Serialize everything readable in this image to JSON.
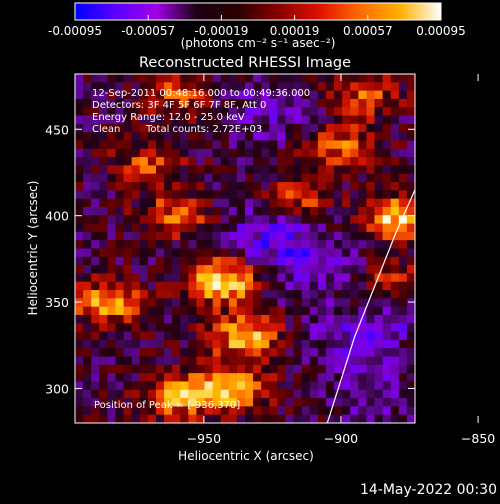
{
  "colorbar": {
    "tick_labels": [
      "-0.00095",
      "-0.00057",
      "-0.00019",
      "0.00019",
      "0.00057",
      "0.00095"
    ],
    "tick_values": [
      -0.00095,
      -0.00057,
      -0.00019,
      0.00019,
      0.00057,
      0.00095
    ],
    "range": [
      -0.00095,
      0.00095
    ],
    "units": "(photons cm⁻² s⁻¹ asec⁻²)",
    "colormap": [
      "#0000ff",
      "#5a00ff",
      "#a000e6",
      "#1a0010",
      "#2a0000",
      "#8a0000",
      "#e01000",
      "#ff6a00",
      "#ffb000",
      "#ffffff"
    ]
  },
  "chart_data": {
    "type": "heatmap",
    "title": "Reconstructed RHESSI Image",
    "xlabel": "Heliocentric X (arcsec)",
    "ylabel": "Heliocentric Y (arcsec)",
    "xlim": [
      -997,
      -873
    ],
    "ylim": [
      280,
      482
    ],
    "x_ticks": [
      -950,
      -900,
      -850
    ],
    "y_ticks": [
      300,
      350,
      400,
      450
    ],
    "x_tick_labels": [
      "−950",
      "−900",
      "−850"
    ],
    "y_tick_labels": [
      "300",
      "350",
      "400",
      "450"
    ],
    "annotations": [
      "12-Sep-2011 00:48:16.000 to 00:49:36.000",
      "Detectors: 3F 4F 5F 6F 7F 8F, Att 0",
      "Energy Range: 12.0 - 25.0 keV",
      "Clean",
      "Total counts: 2.72E+03"
    ],
    "peak_label": "Position of Peak = [-936,370]",
    "peak_position": [
      -936,
      370
    ],
    "limb_curve": [
      [
        -905,
        280
      ],
      [
        -895,
        330
      ],
      [
        -880,
        390
      ],
      [
        -866,
        440
      ],
      [
        -855,
        482
      ]
    ],
    "hot_regions": [
      {
        "x": -943,
        "y": 362,
        "level": 1.0
      },
      {
        "x": -935,
        "y": 330,
        "level": 0.85
      },
      {
        "x": -985,
        "y": 350,
        "level": 0.8
      },
      {
        "x": -940,
        "y": 300,
        "level": 0.9
      },
      {
        "x": -960,
        "y": 295,
        "level": 0.75
      },
      {
        "x": -960,
        "y": 400,
        "level": 0.6
      },
      {
        "x": -970,
        "y": 430,
        "level": 0.55
      },
      {
        "x": -880,
        "y": 398,
        "level": 0.9
      },
      {
        "x": -880,
        "y": 360,
        "level": 0.6
      },
      {
        "x": -900,
        "y": 440,
        "level": 0.6
      },
      {
        "x": -892,
        "y": 470,
        "level": 0.55
      },
      {
        "x": -915,
        "y": 410,
        "level": 0.5
      },
      {
        "x": -860,
        "y": 320,
        "level": 0.55
      },
      {
        "x": -855,
        "y": 300,
        "level": 0.5
      },
      {
        "x": -960,
        "y": 470,
        "level": 0.5
      }
    ],
    "cold_regions": [
      {
        "x": -925,
        "y": 390,
        "level": 0.7
      },
      {
        "x": -910,
        "y": 370,
        "level": 0.55
      },
      {
        "x": -870,
        "y": 345,
        "level": 0.6
      },
      {
        "x": -895,
        "y": 330,
        "level": 0.5
      },
      {
        "x": -925,
        "y": 460,
        "level": 0.5
      },
      {
        "x": -890,
        "y": 300,
        "level": 0.45
      }
    ]
  },
  "footer": {
    "date_label": "14-May-2022 00:30"
  }
}
